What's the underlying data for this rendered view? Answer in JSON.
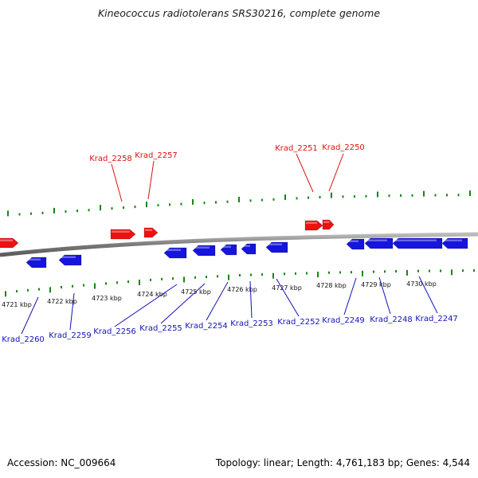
{
  "title": "Kineococcus radiotolerans SRS30216, complete genome",
  "accession_label": "Accession: NC_009664",
  "summary_label": "Topology: linear; Length: 4,761,183 bp; Genes: 4,544",
  "colors": {
    "forward_gene": "#ee1111",
    "reverse_gene": "#1515dd",
    "tick": "#118811",
    "backbone": "#8a8a8a",
    "forward_label": "#dd1111",
    "reverse_label": "#1111bb"
  },
  "scale_labels": [
    "4721 kbp",
    "4722 kbp",
    "4723 kbp",
    "4724 kbp",
    "4725 kbp",
    "4726 kbp",
    "4727 kbp",
    "4728 kbp",
    "4729 kbp",
    "4730 kbp"
  ],
  "forward_labels": [
    "Krad_2258",
    "Krad_2257",
    "Krad_2251",
    "Krad_2250"
  ],
  "reverse_labels": [
    "Krad_2260",
    "Krad_2259",
    "Krad_2256",
    "Krad_2255",
    "Krad_2254",
    "Krad_2253",
    "Krad_2252",
    "Krad_2249",
    "Krad_2248",
    "Krad_2247"
  ]
}
